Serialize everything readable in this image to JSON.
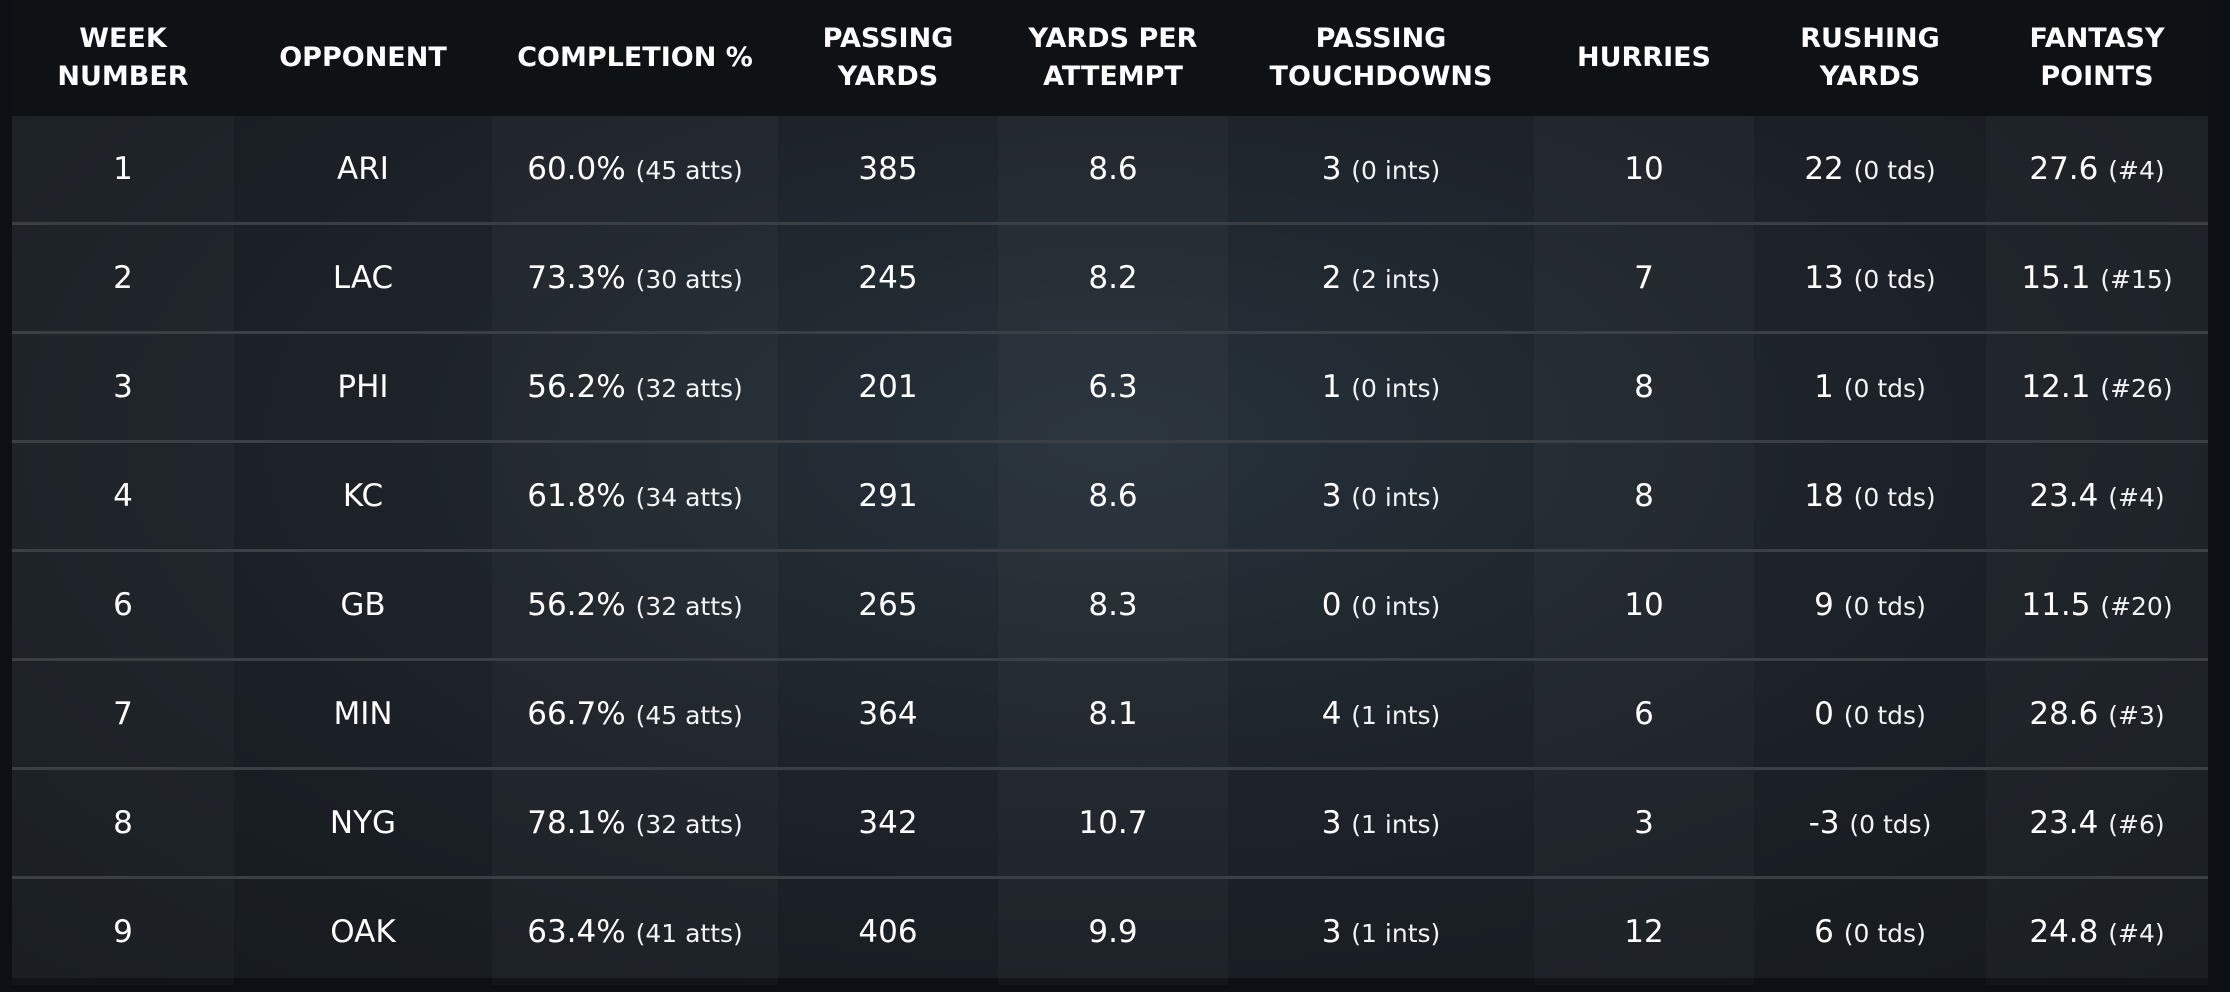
{
  "chart_data": {
    "type": "table",
    "columns": [
      [
        "WEEK NUMBER"
      ],
      [
        "OPPONENT"
      ],
      [
        "COMPLETION %"
      ],
      [
        "PASSING",
        "YARDS"
      ],
      [
        "YARDS PER",
        "ATTEMPT"
      ],
      [
        "PASSING",
        "TOUCHDOWNS"
      ],
      [
        "HURRIES"
      ],
      [
        "RUSHING",
        "YARDS"
      ],
      [
        "FANTASY",
        "POINTS"
      ]
    ],
    "rows": [
      {
        "week": "1",
        "opponent": "ARI",
        "completion": "60.0%",
        "attempts": "(45 atts)",
        "passing_yards": "385",
        "yards_per_attempt": "8.6",
        "passing_tds": "3",
        "ints": "(0 ints)",
        "hurries": "10",
        "rushing_yards": "22",
        "rushing_tds": "(0 tds)",
        "fantasy_points": "27.6",
        "fantasy_rank": "(#4)"
      },
      {
        "week": "2",
        "opponent": "LAC",
        "completion": "73.3%",
        "attempts": "(30 atts)",
        "passing_yards": "245",
        "yards_per_attempt": "8.2",
        "passing_tds": "2",
        "ints": "(2 ints)",
        "hurries": "7",
        "rushing_yards": "13",
        "rushing_tds": "(0 tds)",
        "fantasy_points": "15.1",
        "fantasy_rank": "(#15)"
      },
      {
        "week": "3",
        "opponent": "PHI",
        "completion": "56.2%",
        "attempts": "(32 atts)",
        "passing_yards": "201",
        "yards_per_attempt": "6.3",
        "passing_tds": "1",
        "ints": "(0 ints)",
        "hurries": "8",
        "rushing_yards": "1",
        "rushing_tds": "(0 tds)",
        "fantasy_points": "12.1",
        "fantasy_rank": "(#26)"
      },
      {
        "week": "4",
        "opponent": "KC",
        "completion": "61.8%",
        "attempts": "(34 atts)",
        "passing_yards": "291",
        "yards_per_attempt": "8.6",
        "passing_tds": "3",
        "ints": "(0 ints)",
        "hurries": "8",
        "rushing_yards": "18",
        "rushing_tds": "(0 tds)",
        "fantasy_points": "23.4",
        "fantasy_rank": "(#4)"
      },
      {
        "week": "6",
        "opponent": "GB",
        "completion": "56.2%",
        "attempts": "(32 atts)",
        "passing_yards": "265",
        "yards_per_attempt": "8.3",
        "passing_tds": "0",
        "ints": "(0 ints)",
        "hurries": "10",
        "rushing_yards": "9",
        "rushing_tds": "(0 tds)",
        "fantasy_points": "11.5",
        "fantasy_rank": "(#20)"
      },
      {
        "week": "7",
        "opponent": "MIN",
        "completion": "66.7%",
        "attempts": "(45 atts)",
        "passing_yards": "364",
        "yards_per_attempt": "8.1",
        "passing_tds": "4",
        "ints": "(1 ints)",
        "hurries": "6",
        "rushing_yards": "0",
        "rushing_tds": "(0 tds)",
        "fantasy_points": "28.6",
        "fantasy_rank": "(#3)"
      },
      {
        "week": "8",
        "opponent": "NYG",
        "completion": "78.1%",
        "attempts": "(32 atts)",
        "passing_yards": "342",
        "yards_per_attempt": "10.7",
        "passing_tds": "3",
        "ints": "(1 ints)",
        "hurries": "3",
        "rushing_yards": "-3",
        "rushing_tds": "(0 tds)",
        "fantasy_points": "23.4",
        "fantasy_rank": "(#6)"
      },
      {
        "week": "9",
        "opponent": "OAK",
        "completion": "63.4%",
        "attempts": "(41 atts)",
        "passing_yards": "406",
        "yards_per_attempt": "9.9",
        "passing_tds": "3",
        "ints": "(1 ints)",
        "hurries": "12",
        "rushing_yards": "6",
        "rushing_tds": "(0 tds)",
        "fantasy_points": "24.8",
        "fantasy_rank": "(#4)"
      }
    ]
  }
}
